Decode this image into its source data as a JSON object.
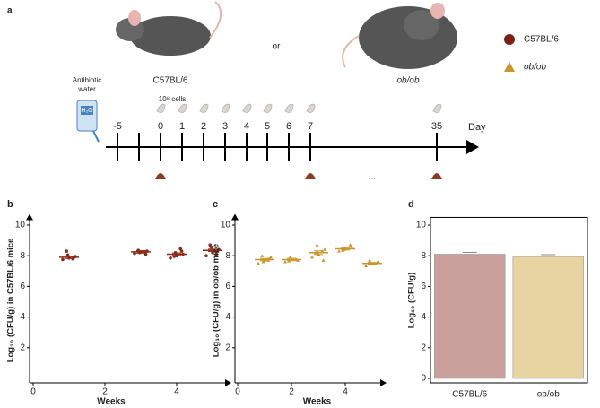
{
  "diagram": {
    "panel": "a",
    "mouse_labels": [
      "C57BL/6",
      "or",
      "ob/ob"
    ],
    "legend": [
      "C57BL/6",
      "ob/ob"
    ],
    "water": [
      "Antibiotic",
      "water"
    ],
    "bottle": "H₂O",
    "cells": "10⁸ cells",
    "days": [
      "-5",
      null,
      "0",
      "1",
      "2",
      "3",
      "4",
      "5",
      "6",
      "7",
      "35"
    ],
    "day_label": "Day",
    "ellipsis": "..."
  },
  "chart_data": [
    {
      "type": "scatter",
      "panel": "b",
      "ylabel": "Log₁₀ (CFU/g) in C57BL/6 mice",
      "xlabel": "Weeks",
      "color": "#8b2a1a",
      "xlim": [
        -0.1,
        5.5
      ],
      "xticks": [
        0,
        2,
        4
      ],
      "ylim": [
        0,
        10.5
      ],
      "yticks": [
        2,
        4,
        6,
        8,
        10
      ],
      "groups": [
        {
          "x": 1,
          "mean": 7.9,
          "error": 0.08,
          "values": [
            7.75,
            7.85,
            7.95,
            8.05,
            7.9,
            8.3,
            7.8
          ]
        },
        {
          "x": 3,
          "mean": 8.25,
          "error": 0.08,
          "values": [
            8.15,
            8.25,
            8.3,
            8.2,
            8.1,
            8.35,
            8.25
          ]
        },
        {
          "x": 4,
          "mean": 8.1,
          "error": 0.08,
          "values": [
            7.85,
            8.0,
            8.1,
            8.2,
            8.3,
            7.95,
            8.45
          ]
        },
        {
          "x": 5,
          "mean": 8.35,
          "error": 0.08,
          "values": [
            8.0,
            8.2,
            8.4,
            8.55,
            8.3,
            8.7,
            8.1
          ]
        }
      ]
    },
    {
      "type": "scatter",
      "panel": "c",
      "ylabel": "Log₁₀ (CFU/g) in ob/ob mice",
      "xlabel": "Weeks",
      "color": "#c8962a",
      "xlim": [
        -0.1,
        5.5
      ],
      "xticks": [
        0,
        2,
        4
      ],
      "ylim": [
        0,
        10.5
      ],
      "yticks": [
        2,
        4,
        6,
        8,
        10
      ],
      "groups": [
        {
          "x": 1,
          "mean": 7.75,
          "error": 0.08,
          "values": [
            7.5,
            7.7,
            7.9,
            7.6,
            7.8,
            8.0,
            7.7
          ]
        },
        {
          "x": 2,
          "mean": 7.75,
          "error": 0.08,
          "values": [
            7.6,
            7.8,
            7.7,
            7.9,
            7.75,
            7.65
          ]
        },
        {
          "x": 3,
          "mean": 8.2,
          "error": 0.12,
          "values": [
            7.9,
            8.1,
            8.4,
            8.7,
            7.7,
            8.2,
            8.3
          ]
        },
        {
          "x": 4,
          "mean": 8.45,
          "error": 0.08,
          "values": [
            8.3,
            8.5,
            8.6,
            8.4,
            8.7,
            8.35
          ]
        },
        {
          "x": 5,
          "mean": 7.5,
          "error": 0.06,
          "values": [
            7.35,
            7.5,
            7.6,
            7.45,
            7.55,
            7.7
          ]
        }
      ]
    },
    {
      "type": "bar",
      "panel": "d",
      "ylabel": "Log₁₀ (CFU/g)",
      "categories": [
        "C57BL/6",
        "ob/ob"
      ],
      "values": [
        8.1,
        7.95
      ],
      "colors": [
        "#c9a09b",
        "#e8d3a3"
      ],
      "ylim": [
        0,
        10.5
      ],
      "yticks": [
        0,
        2,
        4,
        6,
        8,
        10
      ]
    }
  ]
}
